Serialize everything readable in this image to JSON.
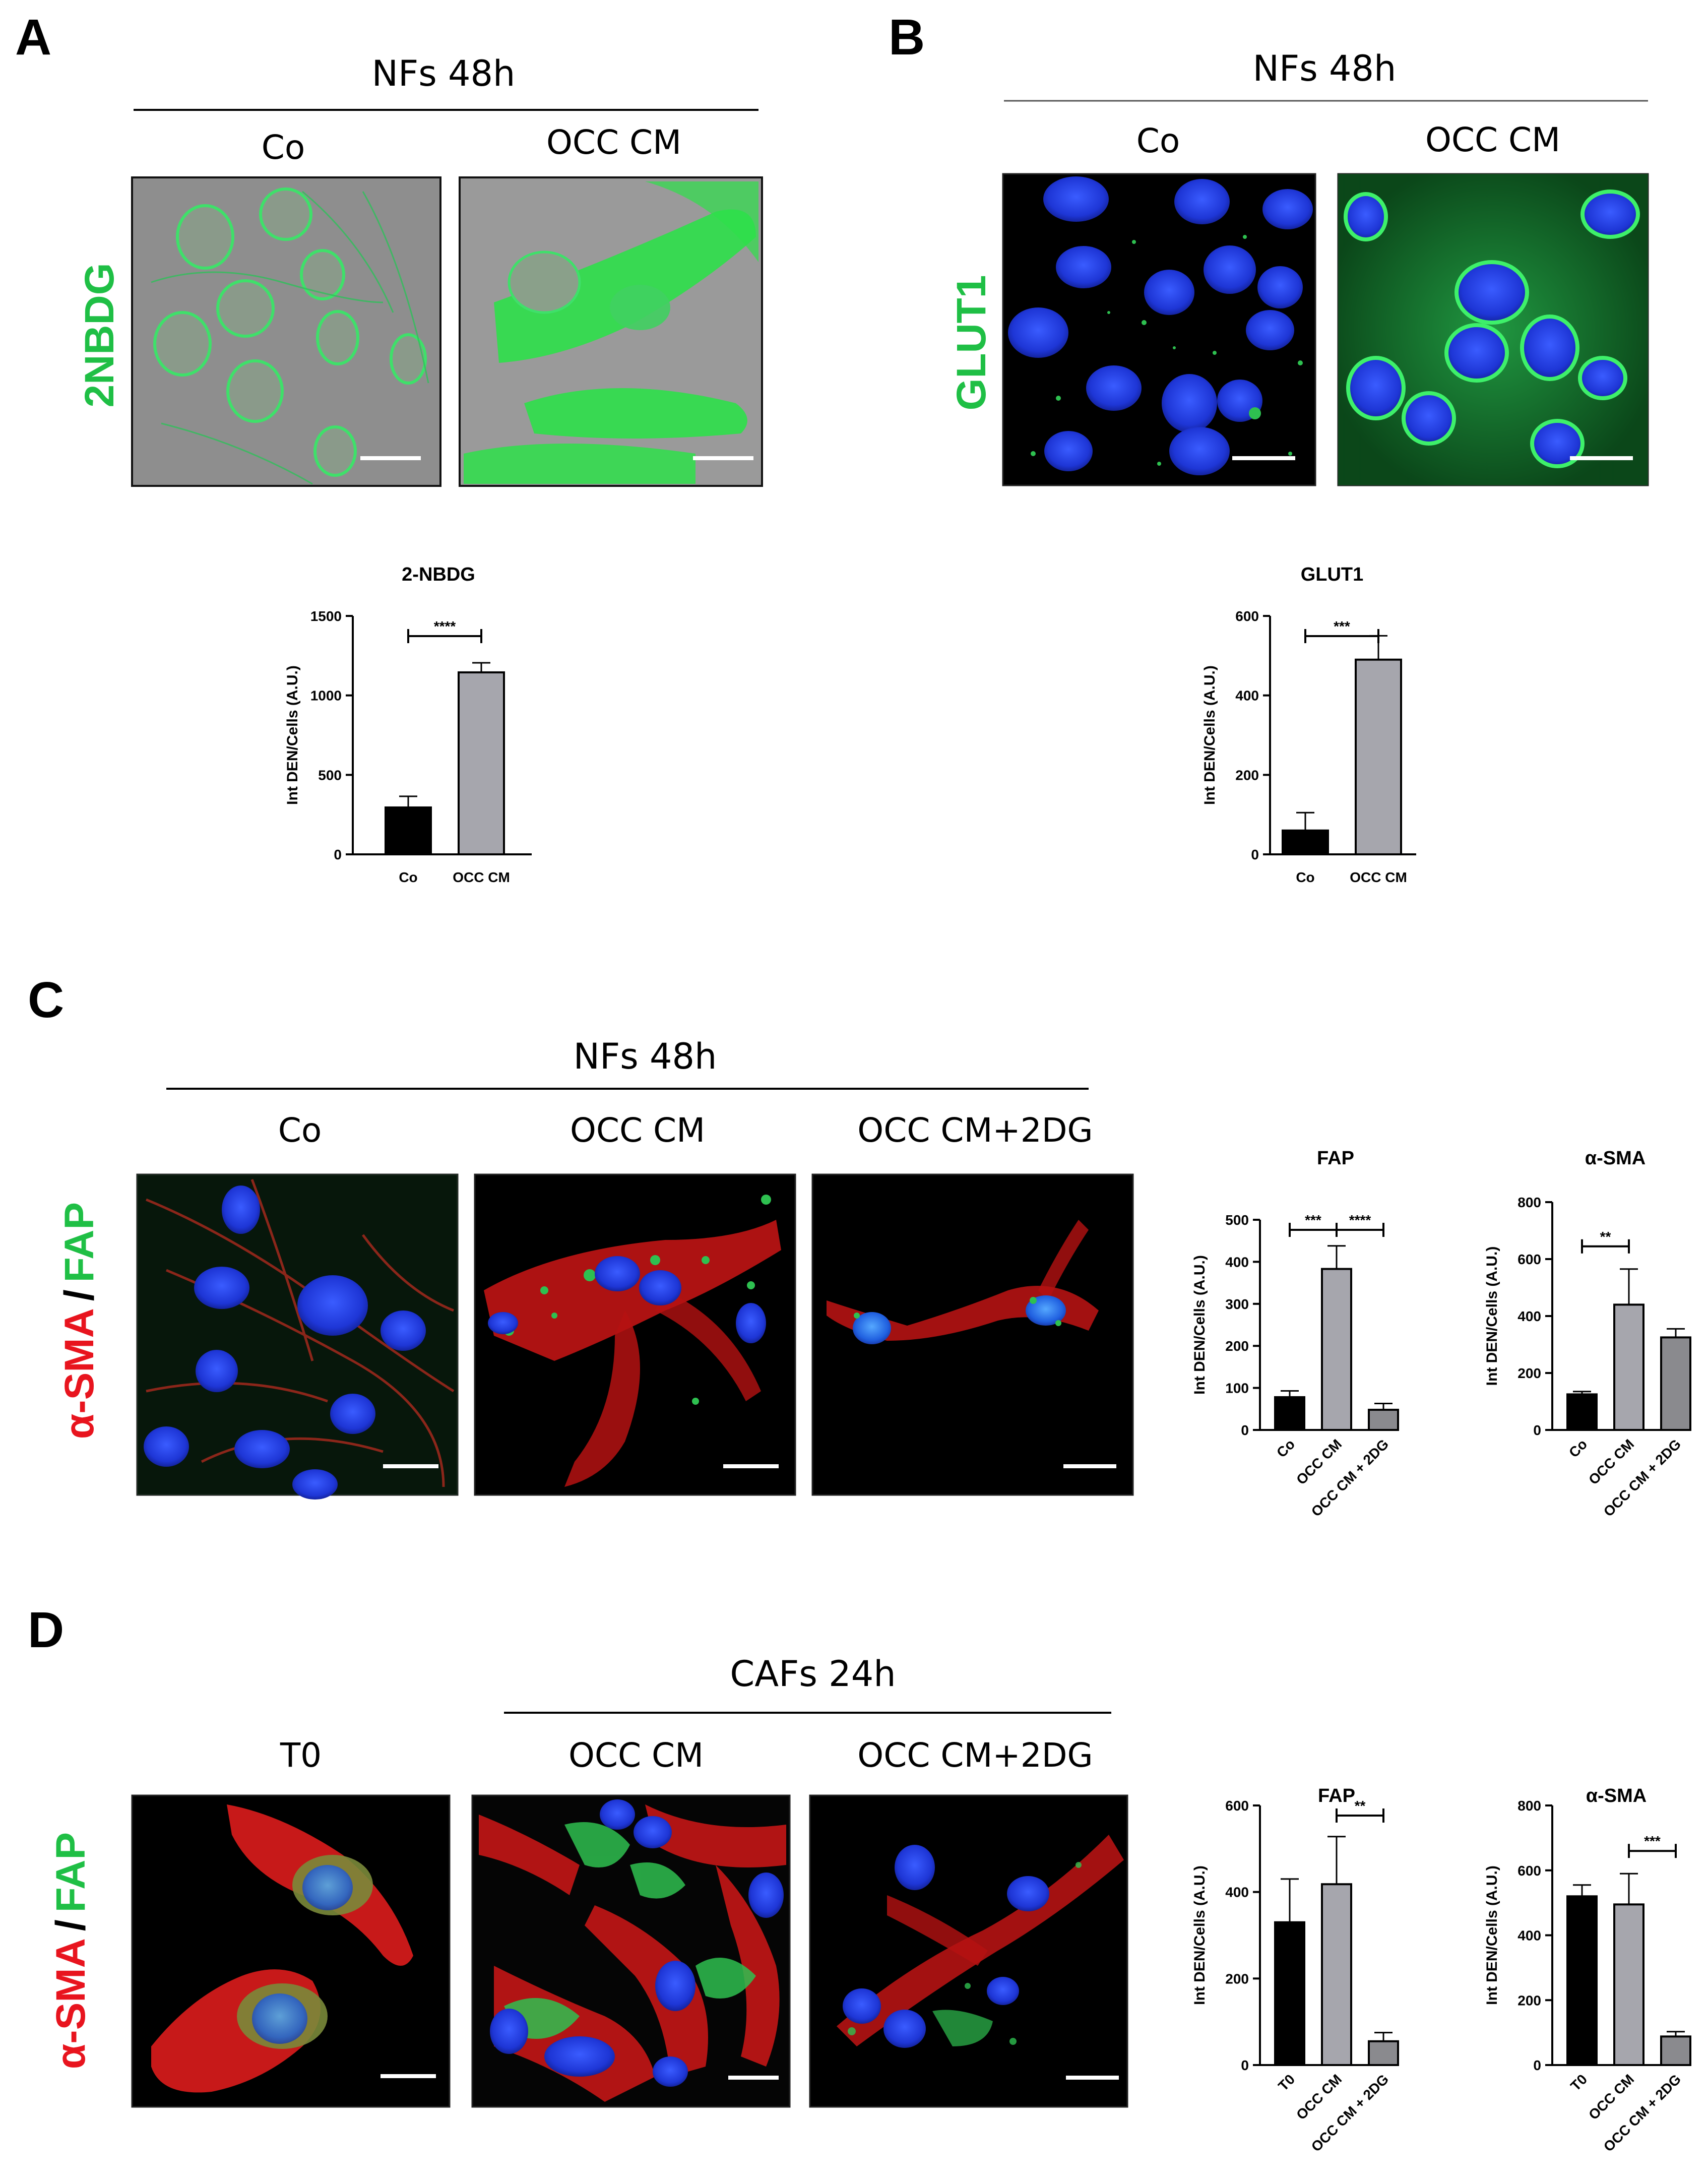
{
  "panels": {
    "A": {
      "letter": "A",
      "header": "NFs 48h",
      "conditions": [
        "Co",
        "OCC CM"
      ],
      "stain": "2NBDG",
      "stain_color": "#1fbf45"
    },
    "B": {
      "letter": "B",
      "header": "NFs 48h",
      "conditions": [
        "Co",
        "OCC CM"
      ],
      "stain": "GLUT1",
      "stain_color": "#1fbf45"
    },
    "C": {
      "letter": "C",
      "header": "NFs 48h",
      "conditions": [
        "Co",
        "OCC CM",
        "OCC CM+2DG"
      ],
      "stain_red": "α-SMA",
      "stain_sep": "/",
      "stain_green": "FAP"
    },
    "D": {
      "letter": "D",
      "header": "CAFs 24h",
      "conditions": [
        "T0",
        "OCC CM",
        "OCC CM+2DG"
      ],
      "stain_red": "α-SMA",
      "stain_sep": "/",
      "stain_green": "FAP"
    }
  },
  "colors": {
    "red_stain": "#e8141e",
    "green_stain": "#1fbf45",
    "bar_black": "#000000",
    "bar_gray_light": "#a6a6ad",
    "bar_gray_mid": "#8a8a8e"
  },
  "chart_data": [
    {
      "id": "A",
      "type": "bar",
      "title": "2-NBDG",
      "ylabel": "Int DEN/Cells (A.U.)",
      "xlabel": "",
      "categories": [
        "Co",
        "OCC CM"
      ],
      "values": [
        295,
        1145
      ],
      "errors": [
        70,
        60
      ],
      "ylim": [
        0,
        1500
      ],
      "yticks": [
        0,
        500,
        1000,
        1500
      ],
      "significance": [
        {
          "from": 0,
          "to": 1,
          "label": "****"
        }
      ],
      "rotate_labels": false
    },
    {
      "id": "B",
      "type": "bar",
      "title": "GLUT1",
      "ylabel": "Int DEN/Cells (A.U.)",
      "xlabel": "",
      "categories": [
        "Co",
        "OCC CM"
      ],
      "values": [
        60,
        490
      ],
      "errors": [
        45,
        60
      ],
      "ylim": [
        0,
        600
      ],
      "yticks": [
        0,
        200,
        400,
        600
      ],
      "significance": [
        {
          "from": 0,
          "to": 1,
          "label": "***"
        }
      ],
      "rotate_labels": false
    },
    {
      "id": "C1",
      "type": "bar",
      "title": "FAP",
      "ylabel": "Int DEN/Cells (A.U.)",
      "xlabel": "",
      "categories": [
        "Co",
        "OCC CM",
        "OCC CM + 2DG"
      ],
      "values": [
        78,
        383,
        48
      ],
      "errors": [
        15,
        55,
        15
      ],
      "ylim": [
        0,
        500
      ],
      "yticks": [
        0,
        100,
        200,
        300,
        400,
        500
      ],
      "significance": [
        {
          "from": 0,
          "to": 1,
          "label": "***"
        },
        {
          "from": 1,
          "to": 2,
          "label": "****"
        }
      ],
      "rotate_labels": true
    },
    {
      "id": "C2",
      "type": "bar",
      "title": "α-SMA",
      "ylabel": "Int DEN/Cells (A.U.)",
      "xlabel": "",
      "categories": [
        "Co",
        "OCC CM",
        "OCC CM + 2DG"
      ],
      "values": [
        125,
        440,
        325
      ],
      "errors": [
        10,
        125,
        30
      ],
      "ylim": [
        0,
        800
      ],
      "yticks": [
        0,
        200,
        400,
        600,
        800
      ],
      "significance": [
        {
          "from": 0,
          "to": 1,
          "label": "**"
        }
      ],
      "rotate_labels": true
    },
    {
      "id": "D1",
      "type": "bar",
      "title": "FAP",
      "ylabel": "Int DEN/Cells (A.U.)",
      "xlabel": "",
      "categories": [
        "T0",
        "OCC CM",
        "OCC CM + 2DG"
      ],
      "values": [
        330,
        418,
        55
      ],
      "errors": [
        100,
        110,
        20
      ],
      "ylim": [
        0,
        600
      ],
      "yticks": [
        0,
        200,
        400,
        600
      ],
      "significance": [
        {
          "from": 1,
          "to": 2,
          "label": "**"
        }
      ],
      "rotate_labels": true
    },
    {
      "id": "D2",
      "type": "bar",
      "title": "α-SMA",
      "ylabel": "Int DEN/Cells (A.U.)",
      "xlabel": "",
      "categories": [
        "T0",
        "OCC CM",
        "OCC CM + 2DG"
      ],
      "values": [
        520,
        495,
        88
      ],
      "errors": [
        35,
        95,
        15
      ],
      "ylim": [
        0,
        800
      ],
      "yticks": [
        0,
        200,
        400,
        600,
        800
      ],
      "significance": [
        {
          "from": 1,
          "to": 2,
          "label": "***"
        }
      ],
      "rotate_labels": true
    }
  ]
}
